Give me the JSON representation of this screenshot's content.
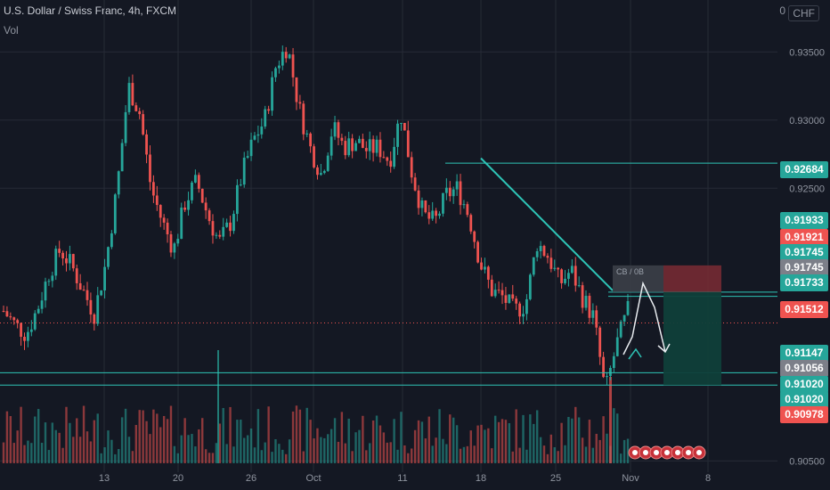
{
  "header": {
    "title": "U.S. Dollar / Swiss Franc, 4h, FXCM",
    "indicator": "Vol",
    "currency": "CHF",
    "currency_prefix": "0"
  },
  "colors": {
    "background": "#141823",
    "up": "#26a69a",
    "down": "#ef5350",
    "line": "#2ec4b6",
    "grid": "#262b36"
  },
  "chart_data": {
    "type": "candlestick",
    "title": "U.S. Dollar / Swiss Franc, 4h, FXCM",
    "ylim": [
      0.9045,
      0.9375
    ],
    "x_ticks": [
      "13",
      "20",
      "26",
      "Oct",
      "11",
      "18",
      "25",
      "Nov",
      "8"
    ],
    "y_ticks": [
      "0.93500",
      "0.93000",
      "0.92500",
      "0.90500"
    ],
    "key_prices": [
      {
        "label": "0.92684",
        "value": 0.92684,
        "color": "#26a69a"
      },
      {
        "label": "0.91933",
        "value": 0.91933,
        "color": "#26a69a"
      },
      {
        "label": "0.91921",
        "value": 0.91921,
        "color": "#ef5350"
      },
      {
        "label": "0.91745",
        "value": 0.91745,
        "color": "#26a69a"
      },
      {
        "label": "0.91745",
        "value": 0.91745,
        "color": "#7c7f89"
      },
      {
        "label": "0.91733",
        "value": 0.91733,
        "color": "#26a69a"
      },
      {
        "label": "0.91512",
        "value": 0.91512,
        "color": "#ef5350"
      },
      {
        "label": "0.91147",
        "value": 0.91147,
        "color": "#26a69a"
      },
      {
        "label": "0.91056",
        "value": 0.91056,
        "color": "#7c7f89"
      },
      {
        "label": "0.91020",
        "value": 0.9102,
        "color": "#26a69a"
      },
      {
        "label": "0.91020",
        "value": 0.9102,
        "color": "#26a69a"
      },
      {
        "label": "0.90978",
        "value": 0.90978,
        "color": "#ef5350"
      }
    ],
    "trend_line": {
      "from": {
        "x": "18",
        "y": 0.9272
      },
      "to": {
        "x": "Nov",
        "y": 0.9175
      }
    },
    "horizontal_levels": [
      0.92684,
      0.91745,
      0.91733,
      0.91147,
      0.91056
    ],
    "current_price": 0.91512,
    "price_path_closes": [
      0.916,
      0.915,
      0.9143,
      0.9162,
      0.9188,
      0.9205,
      0.9193,
      0.9175,
      0.9158,
      0.9195,
      0.925,
      0.9325,
      0.9305,
      0.925,
      0.9225,
      0.9205,
      0.924,
      0.9255,
      0.923,
      0.921,
      0.9225,
      0.926,
      0.9285,
      0.93,
      0.934,
      0.9355,
      0.931,
      0.928,
      0.926,
      0.9295,
      0.928,
      0.9285,
      0.9278,
      0.928,
      0.927,
      0.9305,
      0.926,
      0.923,
      0.9225,
      0.9245,
      0.925,
      0.923,
      0.9195,
      0.9175,
      0.917,
      0.916,
      0.9165,
      0.921,
      0.92,
      0.918,
      0.919,
      0.917,
      0.9155,
      0.91,
      0.9135,
      0.916
    ]
  },
  "labels": {
    "position_tool": "CB / 0B"
  },
  "footer_icons": [
    "add-icon",
    "sell-icon",
    "buy-icon",
    "flag-icon",
    "currency-icon",
    "alert-icon",
    "target-icon"
  ]
}
